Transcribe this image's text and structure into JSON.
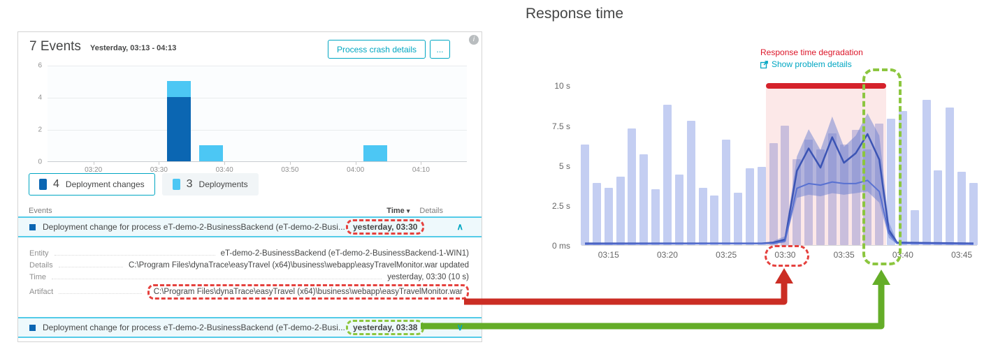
{
  "icons": {
    "info": "i",
    "sort_desc": "▾",
    "collapse": "∧",
    "expand": "∨"
  },
  "colors": {
    "accent_teal": "#00a6c2",
    "row_highlight_cyan": "#54cbe8",
    "deployment_change_blue": "#0b66b2",
    "deployment_light_blue": "#4cc7f4",
    "problem_red": "#dc172a",
    "annotation_red_dash": "#e5413e",
    "annotation_green_dash": "#8cc63f",
    "arrow_red": "#cb2d24",
    "arrow_green": "#64ad28",
    "response_bar_lavender": "#c4cef2",
    "response_line_blue": "#3b54b4"
  },
  "left_panel": {
    "title": "7 Events",
    "subtitle": "Yesterday, 03:13 - 04:13",
    "process_crash_button": "Process crash details",
    "more_button": "...",
    "legend": [
      {
        "count": "4",
        "label": "Deployment changes",
        "selected": true
      },
      {
        "count": "3",
        "label": "Deployments",
        "selected": false
      }
    ],
    "table": {
      "events_header": "Events",
      "time_header": "Time",
      "details_header": "Details",
      "rows": [
        {
          "label": "Deployment change for process eT-demo-2-BusinessBackend (eT-demo-2-Busi...",
          "time": "yesterday, 03:30",
          "expanded": true,
          "time_annotation": "red"
        },
        {
          "label": "Deployment change for process eT-demo-2-BusinessBackend (eT-demo-2-Busi...",
          "time": "yesterday, 03:38",
          "expanded": false,
          "time_annotation": "green"
        }
      ],
      "details": [
        {
          "label": "Entity",
          "value": "eT-demo-2-BusinessBackend (eT-demo-2-BusinessBackend-1-WIN1)"
        },
        {
          "label": "Details",
          "value": "C:\\Program Files\\dynaTrace\\easyTravel (x64)\\business\\webapp\\easyTravelMonitor.war updated"
        },
        {
          "label": "Time",
          "value": "yesterday, 03:30 (10 s)"
        },
        {
          "label": "Artifact",
          "value": "C:\\Program Files\\dynaTrace\\easyTravel (x64)\\business\\webapp\\easyTravelMonitor.war",
          "annotation": "red"
        }
      ]
    }
  },
  "right_panel": {
    "title": "Response time",
    "degradation_label": "Response time degradation",
    "problem_link": "Show problem details"
  },
  "chart_data": [
    {
      "type": "bar",
      "title": "Events timeline",
      "x_start": "03:13",
      "x_end": "04:17",
      "y_max": 6,
      "y_ticks": [
        0,
        2,
        4,
        6
      ],
      "x_ticks": [
        "03:20",
        "03:30",
        "03:40",
        "03:50",
        "04:00",
        "04:10"
      ],
      "series_colors": {
        "Deployment changes": "#0b66b2",
        "Deployments": "#4cc7f4"
      },
      "bars": [
        {
          "time": "03:33",
          "segments": [
            {
              "series": "Deployment changes",
              "value": 4
            },
            {
              "series": "Deployments",
              "value": 1
            }
          ]
        },
        {
          "time": "03:38",
          "segments": [
            {
              "series": "Deployments",
              "value": 1
            }
          ]
        },
        {
          "time": "04:03",
          "segments": [
            {
              "series": "Deployments",
              "value": 1
            }
          ]
        }
      ]
    },
    {
      "type": "bar+line",
      "title": "Response time",
      "unit": "s",
      "y_max": 10.5,
      "y_ticks": [
        {
          "label": "10 s",
          "value": 10
        },
        {
          "label": "7.5 s",
          "value": 7.5
        },
        {
          "label": "5 s",
          "value": 5
        },
        {
          "label": "2.5 s",
          "value": 2.5
        },
        {
          "label": "0 ms",
          "value": 0
        }
      ],
      "x_domain": [
        "03:12.7",
        "03:46.3"
      ],
      "x_ticks": [
        "03:15",
        "03:20",
        "03:25",
        "03:30",
        "03:35",
        "03:40",
        "03:45"
      ],
      "bars": {
        "color": "#c4cef2",
        "start": "03:13",
        "interval_minutes": 1,
        "values": [
          6.3,
          3.9,
          3.6,
          4.3,
          7.3,
          5.7,
          3.5,
          8.8,
          4.4,
          7.8,
          3.6,
          3.1,
          6.6,
          3.3,
          4.8,
          4.9,
          6.4,
          7.5,
          5.4,
          6.6,
          6.0,
          7.0,
          6.3,
          7.2,
          6.0,
          7.6,
          7.9,
          8.4,
          2.2,
          9.1,
          4.7,
          8.6,
          4.6,
          3.9
        ]
      },
      "lines": [
        {
          "name": "response-time-median",
          "color": "#3b54b4",
          "width": 2.5,
          "points": [
            [
              "03:13",
              0.15
            ],
            [
              "03:28",
              0.15
            ],
            [
              "03:29",
              0.2
            ],
            [
              "03:30",
              0.4
            ],
            [
              "03:31",
              4.7
            ],
            [
              "03:32",
              6.1
            ],
            [
              "03:33",
              4.9
            ],
            [
              "03:34",
              6.8
            ],
            [
              "03:35",
              5.2
            ],
            [
              "03:36",
              5.8
            ],
            [
              "03:37",
              7.0
            ],
            [
              "03:38",
              5.4
            ],
            [
              "03:38.8",
              1.0
            ],
            [
              "03:39.5",
              0.2
            ],
            [
              "03:46",
              0.15
            ]
          ]
        },
        {
          "name": "response-time-baseline",
          "color": "#5871d1",
          "width": 2,
          "points": [
            [
              "03:13",
              0.1
            ],
            [
              "03:29",
              0.15
            ],
            [
              "03:30",
              0.3
            ],
            [
              "03:31",
              3.6
            ],
            [
              "03:32",
              3.9
            ],
            [
              "03:33",
              3.8
            ],
            [
              "03:34",
              4.0
            ],
            [
              "03:35",
              3.9
            ],
            [
              "03:36",
              3.9
            ],
            [
              "03:37",
              4.1
            ],
            [
              "03:38",
              3.4
            ],
            [
              "03:38.8",
              0.8
            ],
            [
              "03:39.5",
              0.15
            ],
            [
              "03:46",
              0.1
            ]
          ]
        }
      ],
      "band": {
        "color": "rgba(108,128,208,0.5)",
        "upper": [
          [
            "03:29",
            0.3
          ],
          [
            "03:30",
            0.6
          ],
          [
            "03:31",
            5.6
          ],
          [
            "03:32",
            7.3
          ],
          [
            "03:33",
            6.0
          ],
          [
            "03:34",
            8.1
          ],
          [
            "03:35",
            6.2
          ],
          [
            "03:36",
            6.9
          ],
          [
            "03:37",
            8.3
          ],
          [
            "03:38",
            6.9
          ],
          [
            "03:38.8",
            1.5
          ],
          [
            "03:39.5",
            0.3
          ]
        ],
        "lower": [
          [
            "03:29",
            0.1
          ],
          [
            "03:30",
            0.2
          ],
          [
            "03:31",
            3.0
          ],
          [
            "03:32",
            3.2
          ],
          [
            "03:33",
            3.1
          ],
          [
            "03:34",
            3.3
          ],
          [
            "03:35",
            3.2
          ],
          [
            "03:36",
            3.3
          ],
          [
            "03:37",
            3.4
          ],
          [
            "03:38",
            2.7
          ],
          [
            "03:38.8",
            0.5
          ],
          [
            "03:39.5",
            0.1
          ]
        ]
      },
      "problem": {
        "label": "Response time degradation",
        "start": "03:28.4",
        "end": "03:38.6",
        "top_value": 10,
        "bar_color": "#d5222b",
        "fill_color": "rgba(233,92,92,0.14)"
      }
    }
  ]
}
